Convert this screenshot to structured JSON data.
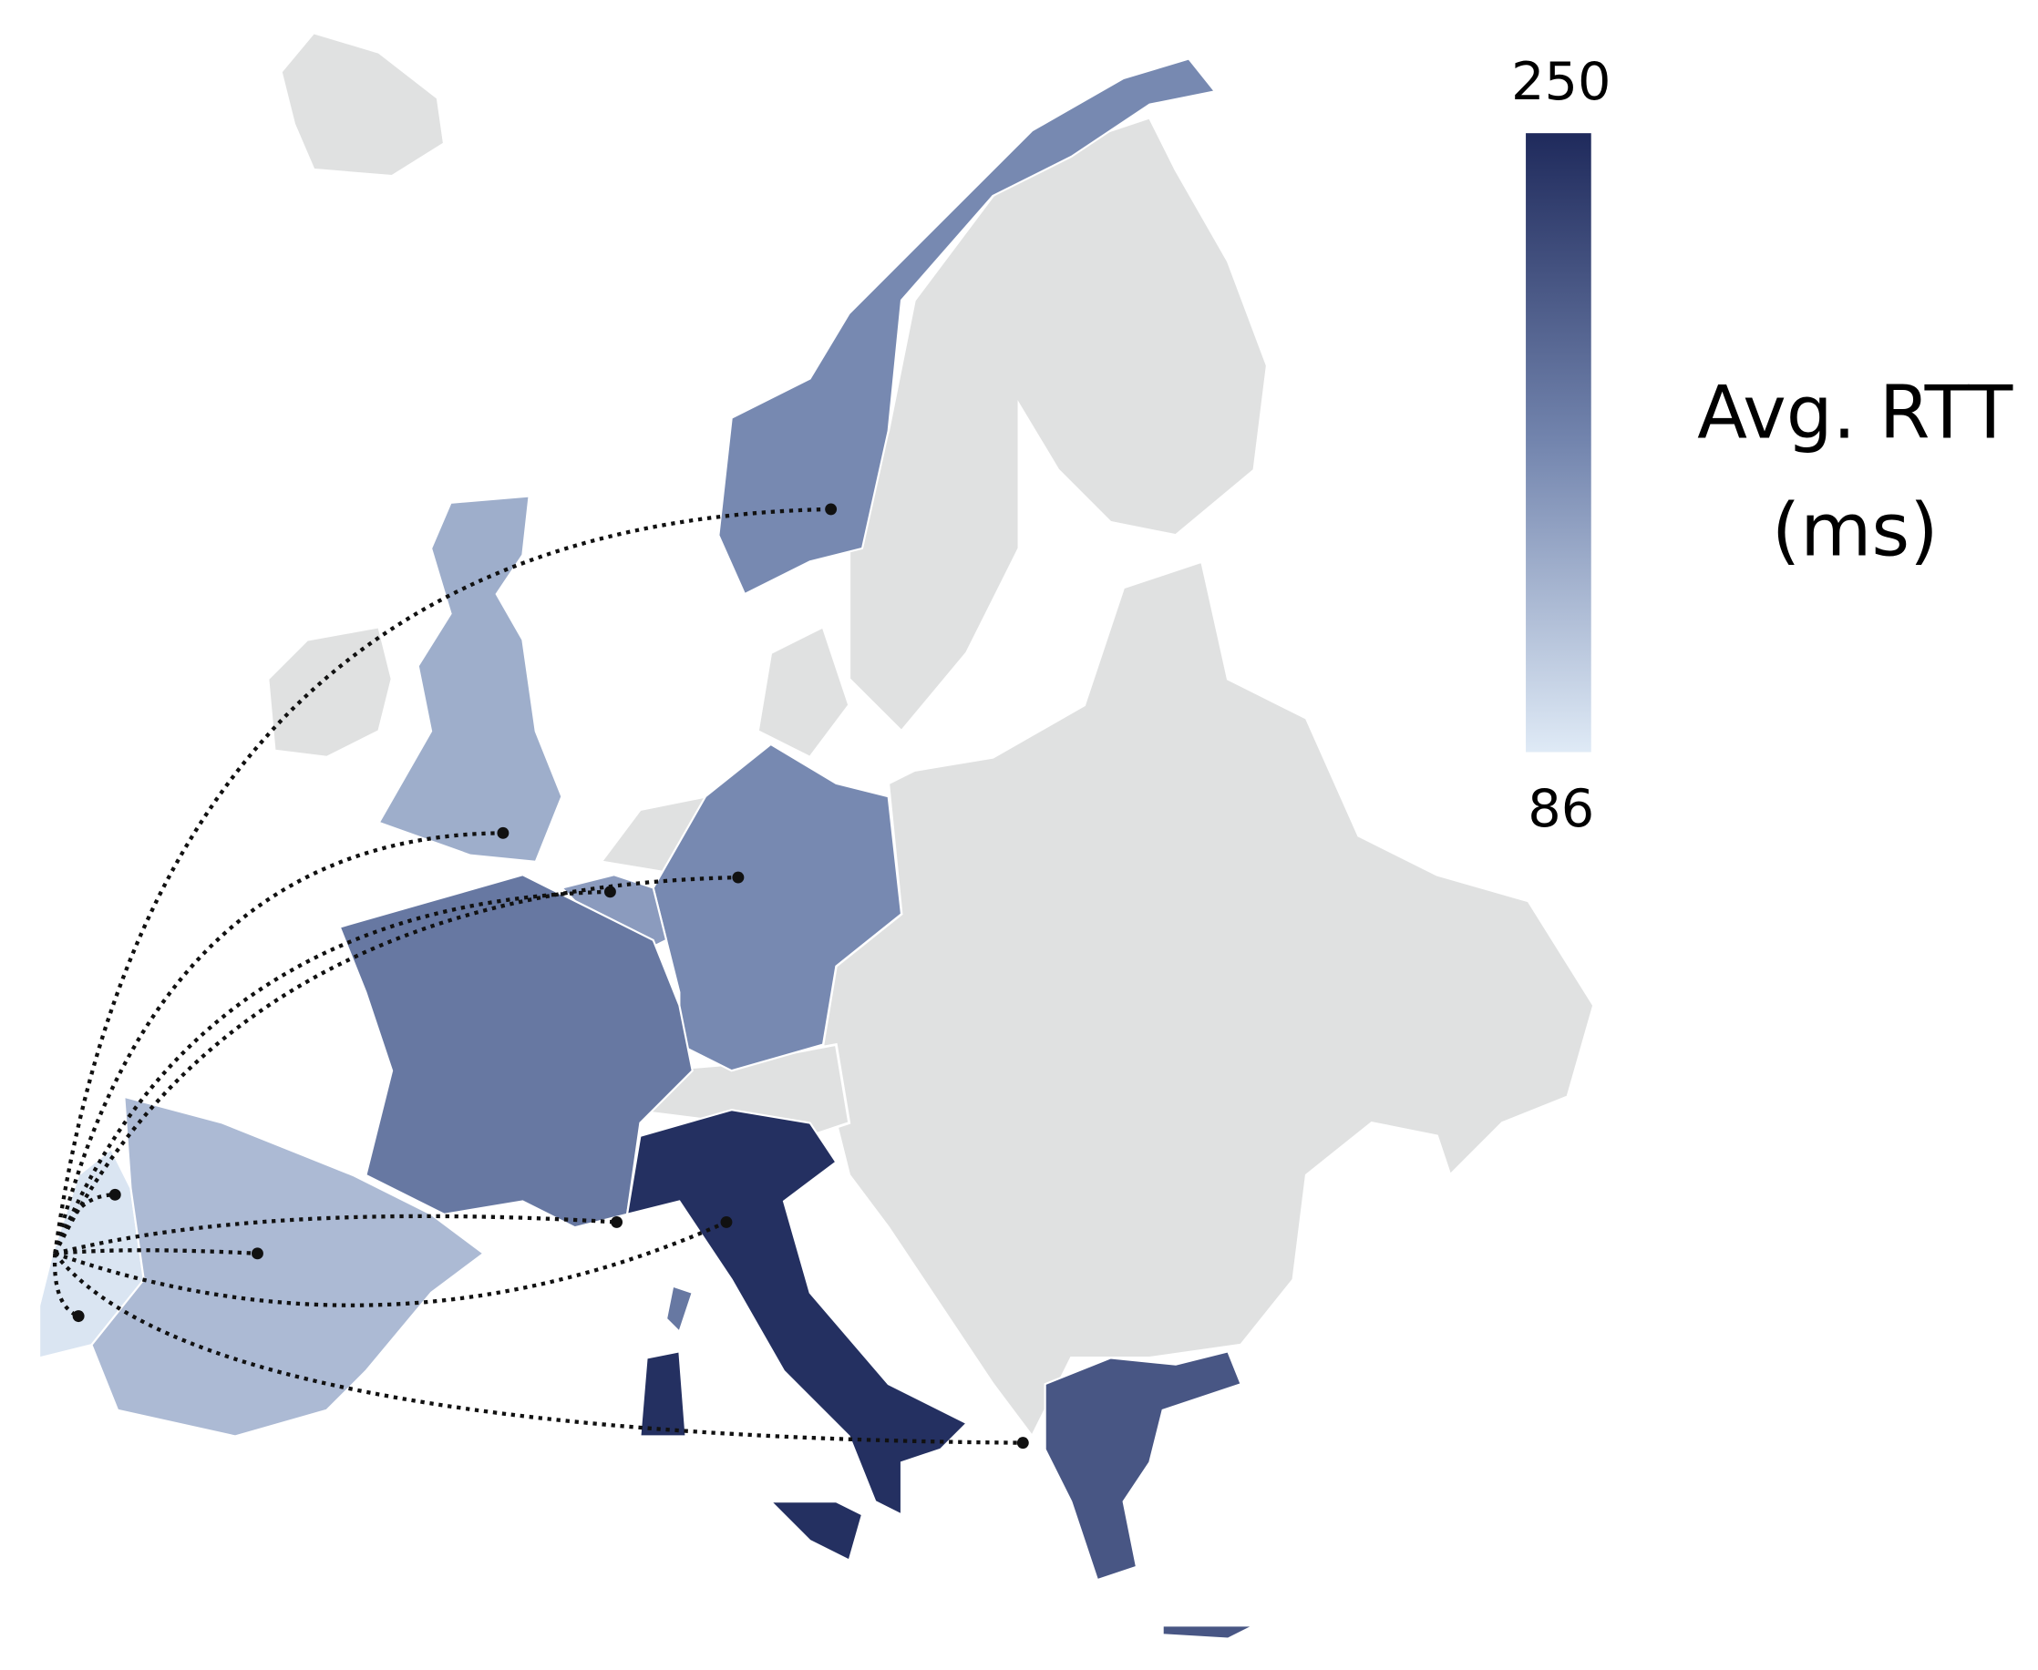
{
  "colorbar": {
    "title": "Avg. RTT",
    "unit": "(ms)",
    "range": [
      86,
      250
    ],
    "colors": [
      "#dfeaf6",
      "#7385ae",
      "#1f2a5c"
    ]
  },
  "regions": {
    "values": [
      90,
      125,
      135,
      165,
      165,
      150,
      180,
      245,
      210
    ]
  }
}
